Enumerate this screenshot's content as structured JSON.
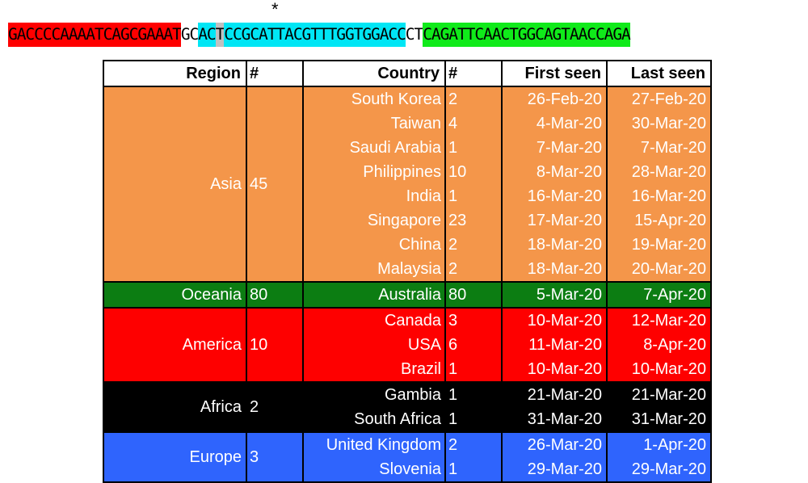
{
  "sequence": {
    "seg_red": "GACCCCAAAATCAGCGAAAT",
    "seg_gap1": "GCAC",
    "seg_snp": "T",
    "seg_cyan": "CCGCATTACGTTTGGTGGACC",
    "seg_gap2": "CT",
    "seg_green": "CAGATTCAACTGGCAGTAACCAGA",
    "seg_cyan_lead": "AC",
    "marker": "*",
    "colors": {
      "red": "#fe0000",
      "cyan": "#00e6f5",
      "snp": "#c0c0c0",
      "green": "#10ea1a"
    }
  },
  "table": {
    "headers": {
      "region": "Region",
      "region_count": "#",
      "country": "Country",
      "country_count": "#",
      "first_seen": "First seen",
      "last_seen": "Last seen"
    },
    "groups": [
      {
        "region": "Asia",
        "count": "45",
        "color": "#f4964a",
        "rows": [
          {
            "country": "South Korea",
            "count": "2",
            "first": "26-Feb-20",
            "last": "27-Feb-20"
          },
          {
            "country": "Taiwan",
            "count": "4",
            "first": "4-Mar-20",
            "last": "30-Mar-20"
          },
          {
            "country": "Saudi Arabia",
            "count": "1",
            "first": "7-Mar-20",
            "last": "7-Mar-20"
          },
          {
            "country": "Philippines",
            "count": "10",
            "first": "8-Mar-20",
            "last": "28-Mar-20"
          },
          {
            "country": "India",
            "count": "1",
            "first": "16-Mar-20",
            "last": "16-Mar-20"
          },
          {
            "country": "Singapore",
            "count": "23",
            "first": "17-Mar-20",
            "last": "15-Apr-20"
          },
          {
            "country": "China",
            "count": "2",
            "first": "18-Mar-20",
            "last": "19-Mar-20"
          },
          {
            "country": "Malaysia",
            "count": "2",
            "first": "18-Mar-20",
            "last": "20-Mar-20"
          }
        ]
      },
      {
        "region": "Oceania",
        "count": "80",
        "color": "#0c7d12",
        "rows": [
          {
            "country": "Australia",
            "count": "80",
            "first": "5-Mar-20",
            "last": "7-Apr-20"
          }
        ]
      },
      {
        "region": "America",
        "count": "10",
        "color": "#fe0000",
        "rows": [
          {
            "country": "Canada",
            "count": "3",
            "first": "10-Mar-20",
            "last": "12-Mar-20"
          },
          {
            "country": "USA",
            "count": "6",
            "first": "11-Mar-20",
            "last": "8-Apr-20"
          },
          {
            "country": "Brazil",
            "count": "1",
            "first": "10-Mar-20",
            "last": "10-Mar-20"
          }
        ]
      },
      {
        "region": "Africa",
        "count": "2",
        "color": "#000000",
        "rows": [
          {
            "country": "Gambia",
            "count": "1",
            "first": "21-Mar-20",
            "last": "21-Mar-20"
          },
          {
            "country": "South Africa",
            "count": "1",
            "first": "31-Mar-20",
            "last": "31-Mar-20"
          }
        ]
      },
      {
        "region": "Europe",
        "count": "3",
        "color": "#2f64fd",
        "rows": [
          {
            "country": "United Kingdom",
            "count": "2",
            "first": "26-Mar-20",
            "last": "1-Apr-20"
          },
          {
            "country": "Slovenia",
            "count": "1",
            "first": "29-Mar-20",
            "last": "29-Mar-20"
          }
        ]
      }
    ]
  }
}
